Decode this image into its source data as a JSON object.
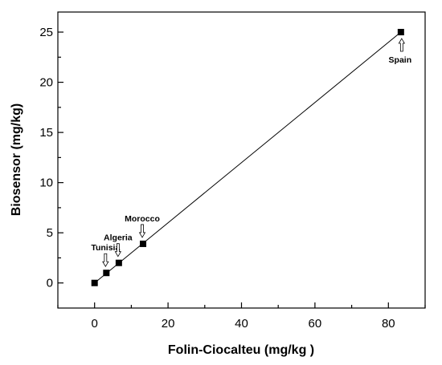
{
  "chart_data": {
    "type": "scatter",
    "title": "",
    "xlabel": "Folin-Ciocalteu (mg/kg )",
    "ylabel": "Biosensor (mg/kg)",
    "xlim": [
      -10,
      90
    ],
    "ylim": [
      -2.5,
      27
    ],
    "xticks": [
      0,
      20,
      40,
      60,
      80
    ],
    "yticks": [
      0,
      5,
      10,
      15,
      20,
      25
    ],
    "grid": false,
    "points": [
      {
        "x": 0,
        "y": 0
      },
      {
        "x": 3.2,
        "y": 1.0
      },
      {
        "x": 6.6,
        "y": 2.0
      },
      {
        "x": 13.2,
        "y": 3.9
      },
      {
        "x": 83.4,
        "y": 25.0
      }
    ],
    "fit_line": {
      "x": [
        0,
        83.4
      ],
      "y": [
        0,
        25.0
      ]
    },
    "annotations": [
      {
        "label": "Tunisia",
        "point": 1,
        "arrow": "down"
      },
      {
        "label": "Algeria",
        "point": 2,
        "arrow": "down"
      },
      {
        "label": "Morocco",
        "point": 3,
        "arrow": "down"
      },
      {
        "label": "Spain",
        "point": 4,
        "arrow": "up"
      }
    ]
  }
}
